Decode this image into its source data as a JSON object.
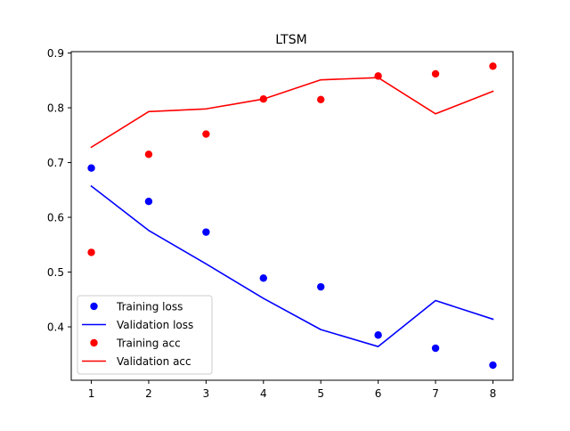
{
  "chart_data": {
    "type": "line",
    "title": "LTSM",
    "xlabel": "",
    "ylabel": "",
    "x": [
      1,
      2,
      3,
      4,
      5,
      6,
      7,
      8
    ],
    "xlim": [
      0.65,
      8.35
    ],
    "ylim": [
      0.3025,
      0.9025
    ],
    "xticks": [
      1,
      2,
      3,
      4,
      5,
      6,
      7,
      8
    ],
    "yticks": [
      0.4,
      0.5,
      0.6,
      0.7,
      0.8,
      0.9
    ],
    "ytick_labels": [
      "0.4",
      "0.5",
      "0.6",
      "0.7",
      "0.8",
      "0.9"
    ],
    "grid": false,
    "legend_position": "lower-left",
    "series": [
      {
        "name": "Training loss",
        "style": "markers",
        "color": "#0000ff",
        "values": [
          0.69,
          0.629,
          0.573,
          0.489,
          0.473,
          0.385,
          0.361,
          0.33
        ]
      },
      {
        "name": "Validation loss",
        "style": "line",
        "color": "#0000ff",
        "values": [
          0.657,
          0.576,
          0.515,
          0.452,
          0.395,
          0.364,
          0.448,
          0.414
        ]
      },
      {
        "name": "Training acc",
        "style": "markers",
        "color": "#ff0000",
        "values": [
          0.536,
          0.715,
          0.752,
          0.816,
          0.815,
          0.858,
          0.862,
          0.876
        ]
      },
      {
        "name": "Validation acc",
        "style": "line",
        "color": "#ff0000",
        "values": [
          0.728,
          0.793,
          0.798,
          0.816,
          0.851,
          0.855,
          0.789,
          0.83
        ]
      }
    ]
  }
}
